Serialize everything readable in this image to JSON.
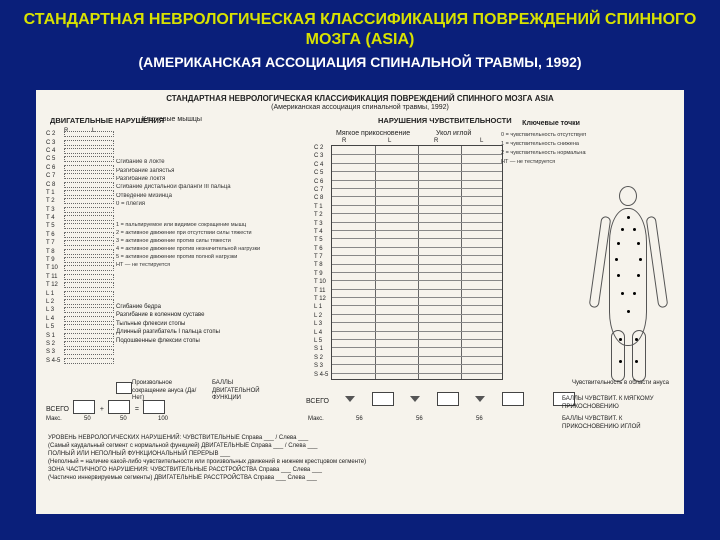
{
  "slide_bg": "#0a1f7a",
  "title": "СТАНДАРТНАЯ НЕВРОЛОГИЧЕСКАЯ КЛАССИФИКАЦИЯ ПОВРЕЖДЕНИЙ СПИННОГО МОЗГА (ASIA)",
  "subtitle": "(АМЕРИКАНСКАЯ АССОЦИАЦИЯ СПИНАЛЬНОЙ ТРАВМЫ, 1992)",
  "sheet": {
    "bg": "#f6f3ec",
    "title": "СТАНДАРТНАЯ НЕВРОЛОГИЧЕСКАЯ КЛАССИФИКАЦИЯ ПОВРЕЖДЕНИЙ СПИННОГО МОЗГА ASIA",
    "sub": "(Американская ассоциация спинальной травмы, 1992)",
    "motor_hdr": "ДВИГАТЕЛЬНЫЕ НАРУШЕНИЯ",
    "key_muscles_hdr": "Ключевые мышцы",
    "sens_hdr": "НАРУШЕНИЯ ЧУВСТВИТЕЛЬНОСТИ",
    "lt_hdr": "Мягкое прикосновение",
    "pp_hdr": "Укол иглой",
    "R": "R",
    "L": "L",
    "segments": [
      "C 2",
      "C 3",
      "C 4",
      "C 5",
      "C 6",
      "C 7",
      "C 8",
      "T 1",
      "T 2",
      "T 3",
      "T 4",
      "T 5",
      "T 6",
      "T 7",
      "T 8",
      "T 9",
      "T 10",
      "T 11",
      "T 12",
      "L 1",
      "L 2",
      "L 3",
      "L 4",
      "L 5",
      "S 1",
      "S 2",
      "S 3",
      "S 4-5"
    ],
    "key_muscles": [
      "",
      "",
      "",
      "Сгибание в локте",
      "Разгибание запястья",
      "Разгибание локтя",
      "Сгибание дистальной фаланги III пальца",
      "Отведение мизинца",
      "0 = плегия"
    ],
    "motor_scale": [
      "1 = пальпируемое или видимое сокращение мышц",
      "2 = активное движение при отсутствии силы тяжести",
      "3 = активное движение против силы тяжести",
      "4 = активное движение против незначительной нагрузки",
      "5 = активное движение против полной нагрузки",
      "НТ — не тестируется"
    ],
    "key_muscles_lower": [
      "Сгибание бедра",
      "Разгибание в коленном суставе",
      "Тыльные флексии стопы",
      "Длинный разгибатель I пальца стопы",
      "Подошвенные флексии стопы"
    ],
    "key_points_hdr": "Ключевые точки",
    "key_points": [
      "0 = чувствительность отсутствует",
      "1 = чувствительность снижена",
      "2 = чувствительность нормальная",
      "НТ — не тестируется"
    ],
    "anal_sphincter_label": "Произвольное сокращение ануса (Да/Нет)",
    "motor_score_label": "БАЛЛЫ ДВИГАТЕЛЬНОЙ ФУНКЦИИ",
    "totals_row": {
      "vsego": "ВСЕГО",
      "plus": "+",
      "eq": "=",
      "max_motor": "Макс.",
      "motor_max_l": "50",
      "motor_max_r": "50",
      "motor_max_total": "100",
      "sens_max_each": "56",
      "sens_max_a": "56",
      "sens_max_b": "56"
    },
    "anal_sens_label": "Чувствительность в области ануса",
    "lt_score_label": "БАЛЛЫ ЧУВСТВИТ. К МЯГКОМУ ПРИКОСНОВЕНИЮ",
    "pp_score_label": "БАЛЛЫ ЧУВСТВИТ. К ПРИКОСНОВЕНИЮ ИГЛОЙ",
    "footer": [
      "УРОВЕНЬ НЕВРОЛОГИЧЕСКИХ НАРУШЕНИЙ: ЧУВСТВИТЕЛЬНЫЕ Справа ___ / Слева ___",
      "(Самый каудальный сегмент с нормальной функцией) ДВИГАТЕЛЬНЫЕ Справа ___ / Слева ___",
      "ПОЛНЫЙ ИЛИ НЕПОЛНЫЙ ФУНКЦИОНАЛЬНЫЙ ПЕРЕРЫВ ___",
      "(Неполный = наличие какой-либо чувствительности или произвольных движений в нижнем крестцовом сегменте)",
      "ЗОНА ЧАСТИЧНОГО НАРУШЕНИЯ: ЧУВСТВИТЕЛЬНЫЕ РАССТРОЙСТВА Справа ___ Слева ___",
      "(Частично иннервируемые сегменты)        ДВИГАТЕЛЬНЫЕ РАССТРОЙСТВА Справа ___ Слева ___"
    ]
  }
}
